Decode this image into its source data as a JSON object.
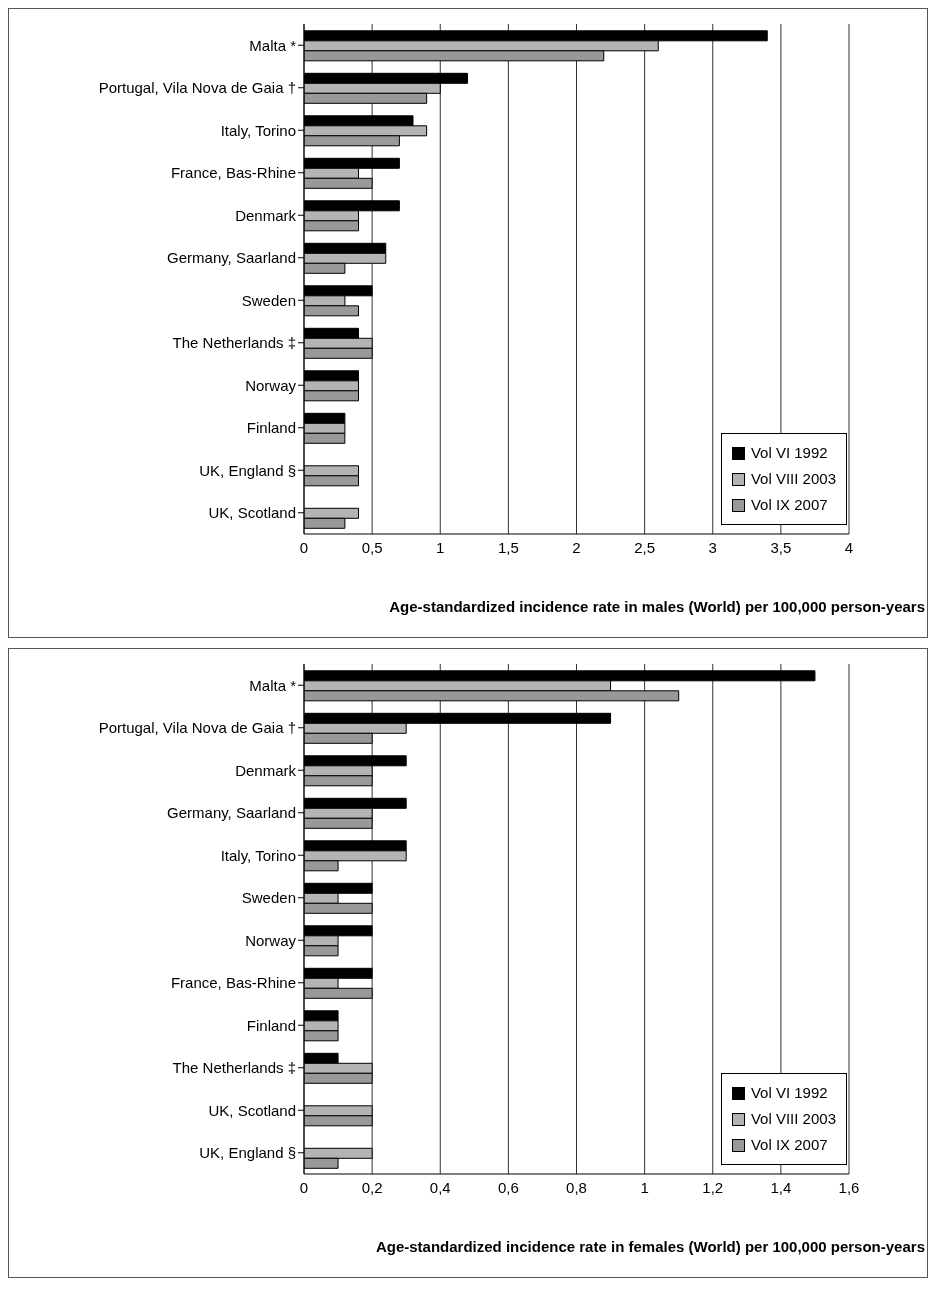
{
  "chart_data": [
    {
      "type": "bar",
      "orientation": "horizontal",
      "xlabel": "Age-standardized incidence rate in males (World) per 100,000 person-years",
      "categories": [
        "Malta *",
        "Portugal, Vila Nova de Gaia †",
        "Italy, Torino",
        "France, Bas-Rhine",
        "Denmark",
        "Germany, Saarland",
        "Sweden",
        "The Netherlands ‡",
        "Norway",
        "Finland",
        "UK, England §",
        "UK, Scotland"
      ],
      "series": [
        {
          "name": "Vol VI 1992",
          "color": "#000000",
          "values": [
            3.4,
            1.2,
            0.8,
            0.7,
            0.7,
            0.6,
            0.5,
            0.4,
            0.4,
            0.3,
            null,
            null
          ]
        },
        {
          "name": "Vol VIII 2003",
          "color": "#b4b4b4",
          "values": [
            2.6,
            1.0,
            0.9,
            0.4,
            0.4,
            0.6,
            0.3,
            0.5,
            0.4,
            0.3,
            0.4,
            0.4
          ]
        },
        {
          "name": "Vol IX 2007",
          "color": "#999999",
          "values": [
            2.2,
            0.9,
            0.7,
            0.5,
            0.4,
            0.3,
            0.4,
            0.5,
            0.4,
            0.3,
            0.4,
            0.3
          ]
        }
      ],
      "xlim": [
        0,
        4
      ],
      "xticks": [
        0,
        {
          "value": 0.5,
          "label": "0,5"
        },
        1,
        {
          "value": 1.5,
          "label": "1,5"
        },
        2,
        {
          "value": 2.5,
          "label": "2,5"
        },
        3,
        {
          "value": 3.5,
          "label": "3,5"
        },
        4
      ],
      "grid": "x",
      "legend": "bottom right"
    },
    {
      "type": "bar",
      "orientation": "horizontal",
      "xlabel": "Age-standardized incidence rate in females (World) per 100,000 person-years",
      "categories": [
        "Malta *",
        "Portugal, Vila Nova de Gaia †",
        "Denmark",
        "Germany, Saarland",
        "Italy, Torino",
        "Sweden",
        "Norway",
        "France, Bas-Rhine",
        "Finland",
        "The Netherlands ‡",
        "UK, Scotland",
        "UK, England §"
      ],
      "series": [
        {
          "name": "Vol VI 1992",
          "color": "#000000",
          "values": [
            1.5,
            0.9,
            0.3,
            0.3,
            0.3,
            0.2,
            0.2,
            0.2,
            0.1,
            0.1,
            null,
            null
          ]
        },
        {
          "name": "Vol VIII 2003",
          "color": "#b4b4b4",
          "values": [
            0.9,
            0.3,
            0.2,
            0.2,
            0.3,
            0.1,
            0.1,
            0.1,
            0.1,
            0.2,
            0.2,
            0.2
          ]
        },
        {
          "name": "Vol IX 2007",
          "color": "#999999",
          "values": [
            1.1,
            0.2,
            0.2,
            0.2,
            0.1,
            0.2,
            0.1,
            0.2,
            0.1,
            0.2,
            0.2,
            0.1
          ]
        }
      ],
      "xlim": [
        0,
        1.6
      ],
      "xticks": [
        0,
        {
          "value": 0.2,
          "label": "0,2"
        },
        {
          "value": 0.4,
          "label": "0,4"
        },
        {
          "value": 0.6,
          "label": "0,6"
        },
        {
          "value": 0.8,
          "label": "0,8"
        },
        1,
        {
          "value": 1.2,
          "label": "1,2"
        },
        {
          "value": 1.4,
          "label": "1,4"
        },
        {
          "value": 1.6,
          "label": "1,6"
        }
      ],
      "grid": "x",
      "legend": "bottom right"
    }
  ]
}
